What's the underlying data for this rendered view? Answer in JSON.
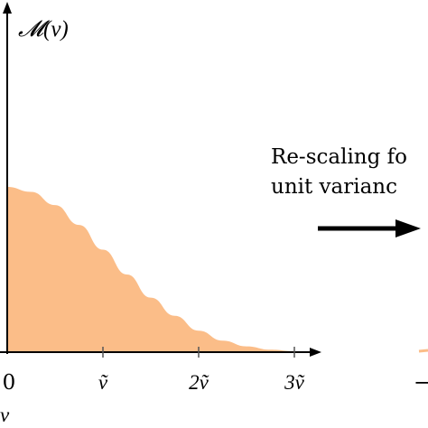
{
  "figure": {
    "y_axis_label": "𝓜(v)",
    "x_axis_label": "v",
    "ticks": [
      "0",
      "ṽ",
      "2ṽ",
      "3ṽ"
    ],
    "annotation_lines": [
      "Re-scaling fo",
      "unit varianc"
    ],
    "right_panel_tick_fragment": "−",
    "fill_color": "#fbbd88",
    "axis_color": "#000000",
    "arrow_color": "#000000"
  },
  "chart_data": {
    "type": "area",
    "x": [
      0,
      0.25,
      0.5,
      0.75,
      1.0,
      1.25,
      1.5,
      1.75,
      2.0,
      2.25,
      2.5,
      2.75,
      3.0
    ],
    "y": [
      1.0,
      0.97,
      0.89,
      0.77,
      0.62,
      0.47,
      0.33,
      0.22,
      0.13,
      0.07,
      0.035,
      0.015,
      0.006
    ],
    "x_unit": "ṽ",
    "xlim": [
      0,
      3.2
    ],
    "ylim": [
      0,
      1.0
    ],
    "xlabel": "v",
    "ylabel": "𝓜(v)",
    "grid": false
  }
}
